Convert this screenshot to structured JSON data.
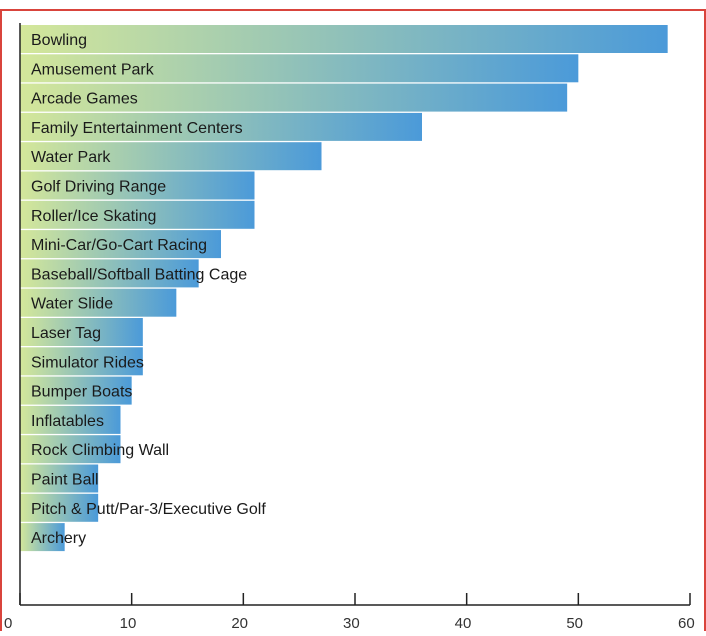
{
  "colors": {
    "frame": "#d9443c",
    "bar_start": "#d4e79a",
    "bar_end": "#4b9ad9",
    "axis": "#222222",
    "label": "#1a1a1a"
  },
  "chart_data": {
    "type": "bar",
    "orientation": "horizontal",
    "title": "",
    "xlabel": "",
    "ylabel": "",
    "xlim": [
      0,
      60
    ],
    "x_ticks": [
      0,
      10,
      20,
      30,
      40,
      50,
      60
    ],
    "grid": false,
    "legend": "none",
    "categories": [
      "Bowling",
      "Amusement Park",
      "Arcade Games",
      "Family Entertainment Centers",
      "Water Park",
      "Golf Driving Range",
      "Roller/Ice Skating",
      "Mini-Car/Go-Cart Racing",
      "Baseball/Softball Batting Cage",
      "Water Slide",
      "Laser Tag",
      "Simulator Rides",
      "Bumper Boats",
      "Inflatables",
      "Rock Climbing Wall",
      "Paint Ball",
      "Pitch & Putt/Par-3/Executive Golf",
      "Archery"
    ],
    "values": [
      58,
      50,
      49,
      36,
      27,
      21,
      21,
      18,
      16,
      14,
      11,
      11,
      10,
      9,
      9,
      7,
      7,
      4
    ]
  }
}
